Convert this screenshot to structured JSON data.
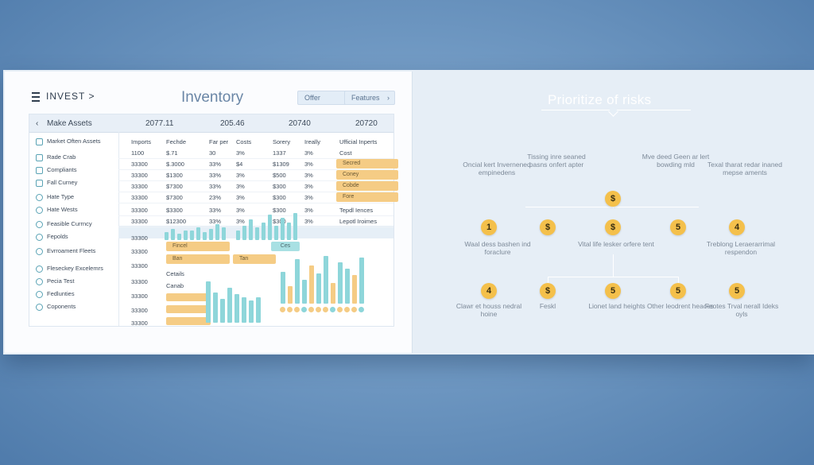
{
  "left": {
    "nav_label": "INVEST >",
    "title": "Inventory",
    "buttons": {
      "offer": "Offer",
      "features": "Features"
    },
    "header": {
      "back_label": "Make Assets",
      "cols": [
        "2077.11",
        "205.46",
        "20740",
        "20720"
      ]
    },
    "sidebar": [
      {
        "label": "Market Often Assets",
        "icon": "square"
      },
      {
        "label": "Rade Crab",
        "icon": "square"
      },
      {
        "label": "Compliants",
        "icon": "square"
      },
      {
        "label": "Fall Curney",
        "icon": "square"
      },
      {
        "label": "Hate Type",
        "icon": "round"
      },
      {
        "label": "Hate Wests",
        "icon": "round"
      },
      {
        "label": "Feasible Currncy",
        "icon": "round"
      },
      {
        "label": "Fepolds",
        "icon": "round"
      },
      {
        "label": "Evrroament Fleets",
        "icon": "round"
      },
      {
        "label": "Fleseckey Excelemrs",
        "icon": "round"
      },
      {
        "label": "Pecia Test",
        "icon": "round"
      },
      {
        "label": "Fedlunties",
        "icon": "round"
      },
      {
        "label": "Coponents",
        "icon": "round"
      }
    ],
    "table": {
      "headers": [
        "Imports",
        "Fechde",
        "Far per",
        "Costs",
        "Sorery",
        "Ireally",
        "Ufficial Inperts"
      ],
      "rows": [
        [
          "1100",
          "$.71",
          "30",
          "3%",
          "1337",
          "3%",
          "Cost"
        ],
        [
          "33300",
          "$.3000",
          "33%",
          "$4",
          "$1309",
          "3%",
          "Secred"
        ],
        [
          "33300",
          "$1300",
          "33%",
          "3%",
          "$500",
          "3%",
          "Coney"
        ],
        [
          "33300",
          "$7300",
          "33%",
          "3%",
          "$300",
          "3%",
          "Cobde"
        ],
        [
          "33300",
          "$7300",
          "23%",
          "3%",
          "$300",
          "3%",
          "Fore"
        ],
        [
          "33300",
          "$3300",
          "33%",
          "3%",
          "$300",
          "3%",
          "Tepdl Iences"
        ],
        [
          "33300",
          "$12300",
          "33%",
          "3%",
          "$300",
          "3%",
          "Lepotl Iroimes"
        ]
      ],
      "lower_rows": [
        "33300",
        "33300",
        "33300",
        "33300",
        "33300",
        "33300",
        "33300"
      ],
      "blocks": {
        "f_label": "Fincel",
        "ban_label": "Ban",
        "tan_label": "Tan",
        "ces": "Ces",
        "cetails": "Cetails",
        "canab": "Canab"
      }
    }
  },
  "right": {
    "title": "Prioritize of risks",
    "top_labels": [
      "Oncial kert Invernened empinedens",
      "Tissing inre seaned pasns onfert apter",
      "Mve deed Geen ar lert bowding mld",
      "Texal tharat redar inaned mepse aments"
    ],
    "top_node": "$",
    "row2_nodes": [
      "1",
      "$",
      "$",
      "5",
      "4"
    ],
    "mid_labels": [
      "Waal dess bashen ind foraclure",
      "Vital life lesker orfere tent",
      "Treblong Leraerarrimal respendon"
    ],
    "row3_nodes": [
      "4",
      "$",
      "5",
      "5",
      "5"
    ],
    "bottom_labels": [
      "Clawr et houss nedral hoine",
      "Feskl",
      "Lionet land heights",
      "Other leodrent heaces",
      "Feotes Trval nerall Ideks oyls"
    ]
  },
  "colors": {
    "accent": "#f4c04b",
    "teal": "#8ed6da",
    "orange": "#f5cc85"
  }
}
